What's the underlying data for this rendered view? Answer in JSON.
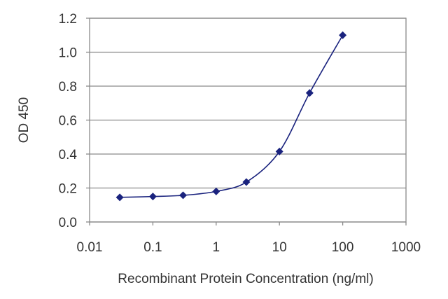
{
  "chart_data": {
    "type": "line",
    "xlabel": "Recombinant Protein Concentration (ng/ml)",
    "ylabel": "OD 450",
    "x_scale": "log",
    "xlim": [
      0.01,
      1000
    ],
    "ylim": [
      0,
      1.2
    ],
    "x_ticks": [
      0.01,
      0.1,
      1,
      10,
      100,
      1000
    ],
    "x_tick_labels": [
      "0.01",
      "0.1",
      "1",
      "10",
      "100",
      "1000"
    ],
    "y_ticks": [
      0,
      0.2,
      0.4,
      0.6,
      0.8,
      1.0,
      1.2
    ],
    "y_tick_labels": [
      "0.0",
      "0.2",
      "0.4",
      "0.6",
      "0.8",
      "1.0",
      "1.2"
    ],
    "grid": "horizontal",
    "legend": "none",
    "series": [
      {
        "x": [
          0.03,
          0.1,
          0.3,
          1,
          3,
          10,
          30,
          100
        ],
        "y": [
          0.145,
          0.15,
          0.157,
          0.18,
          0.235,
          0.415,
          0.76,
          1.1
        ],
        "color": "#1a237e",
        "marker": "diamond"
      }
    ]
  }
}
